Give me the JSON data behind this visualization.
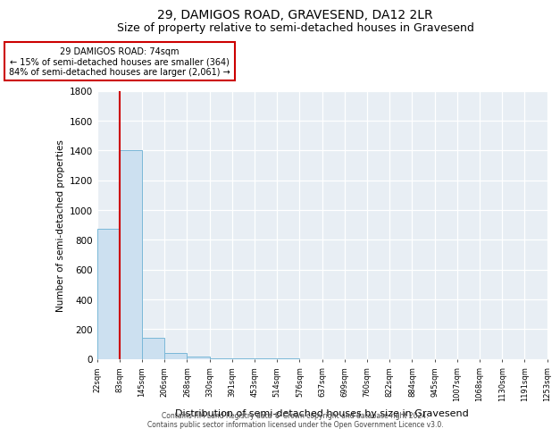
{
  "title": "29, DAMIGOS ROAD, GRAVESEND, DA12 2LR",
  "subtitle": "Size of property relative to semi-detached houses in Gravesend",
  "xlabel": "Distribution of semi-detached houses by size in Gravesend",
  "ylabel": "Number of semi-detached properties",
  "bin_labels": [
    "22sqm",
    "83sqm",
    "145sqm",
    "206sqm",
    "268sqm",
    "330sqm",
    "391sqm",
    "453sqm",
    "514sqm",
    "576sqm",
    "637sqm",
    "699sqm",
    "760sqm",
    "822sqm",
    "884sqm",
    "945sqm",
    "1007sqm",
    "1068sqm",
    "1130sqm",
    "1191sqm",
    "1253sqm"
  ],
  "bar_values": [
    875,
    1400,
    140,
    40,
    18,
    4,
    2,
    1,
    1,
    0,
    0,
    0,
    0,
    0,
    0,
    0,
    0,
    0,
    0,
    0
  ],
  "bar_color": "#cce0f0",
  "bar_edge_color": "#7ab8d8",
  "red_line_x": 0.5,
  "annotation_text": "29 DAMIGOS ROAD: 74sqm\n← 15% of semi-detached houses are smaller (364)\n84% of semi-detached houses are larger (2,061) →",
  "annotation_box_color": "#ffffff",
  "annotation_box_edge": "#cc0000",
  "red_line_color": "#cc0000",
  "ylim": [
    0,
    1800
  ],
  "yticks": [
    0,
    200,
    400,
    600,
    800,
    1000,
    1200,
    1400,
    1600,
    1800
  ],
  "footer_line1": "Contains HM Land Registry data © Crown copyright and database right 2024.",
  "footer_line2": "Contains public sector information licensed under the Open Government Licence v3.0.",
  "background_color": "#e8eef4",
  "title_fontsize": 10,
  "subtitle_fontsize": 9
}
